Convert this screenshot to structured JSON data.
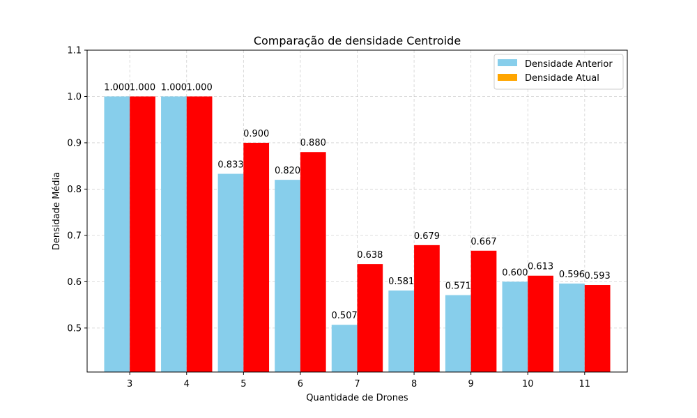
{
  "chart_data": {
    "type": "bar",
    "title": "Comparação de densidade Centroide",
    "xlabel": "Quantidade de Drones",
    "ylabel": "Densidade Média",
    "categories": [
      "3",
      "4",
      "5",
      "6",
      "7",
      "8",
      "9",
      "10",
      "11"
    ],
    "series": [
      {
        "name": "Densidade Anterior",
        "color": "#87CEEB",
        "values": [
          1.0,
          1.0,
          0.833,
          0.82,
          0.507,
          0.581,
          0.571,
          0.6,
          0.596
        ],
        "labels": [
          "1.000",
          "1.000",
          "0.833",
          "0.820",
          "0.507",
          "0.581",
          "0.571",
          "0.600",
          "0.596"
        ]
      },
      {
        "name": "Densidade Atual",
        "color": "#FF0000",
        "legend_color": "#FFA500",
        "values": [
          1.0,
          1.0,
          0.9,
          0.88,
          0.638,
          0.679,
          0.667,
          0.613,
          0.593
        ],
        "labels": [
          "1.000",
          "1.000",
          "0.900",
          "0.880",
          "0.638",
          "0.679",
          "0.667",
          "0.613",
          "0.593"
        ]
      }
    ],
    "ylim": [
      0.405,
      1.1
    ],
    "yticks": [
      "0.5",
      "0.6",
      "0.7",
      "0.8",
      "0.9",
      "1.0",
      "1.1"
    ],
    "grid": true,
    "legend_position": "top-right"
  }
}
